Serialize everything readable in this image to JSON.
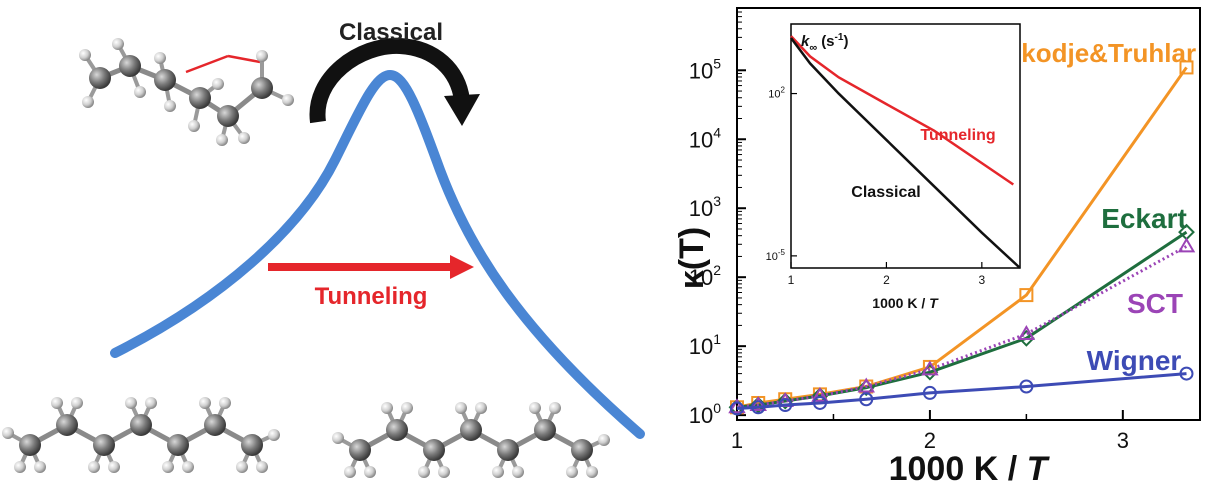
{
  "left_panel": {
    "classical_label": "Classical",
    "tunneling_label": "Tunneling",
    "colors": {
      "barrier": "#4a86d4",
      "tunnel": "#e5262b",
      "arrow": "#111111"
    },
    "icons": [
      "ts-molecule-icon",
      "reactant-molecule-icon",
      "product-molecule-icon"
    ]
  },
  "chart_data": [
    {
      "type": "line",
      "log_y": true,
      "xlabel": "1000 K / T",
      "ylabel": "κ(T)",
      "xlim": [
        1.0,
        3.4
      ],
      "ylim": [
        0.85,
        800000
      ],
      "x_ticks": [
        "1",
        "2",
        "3"
      ],
      "y_ticks": [
        {
          "base": "10",
          "exp": "0"
        },
        {
          "base": "10",
          "exp": "1"
        },
        {
          "base": "10",
          "exp": "2"
        },
        {
          "base": "10",
          "exp": "3"
        },
        {
          "base": "10",
          "exp": "4"
        },
        {
          "base": "10",
          "exp": "5"
        }
      ],
      "series": [
        {
          "name": "Skodje&Truhlar",
          "color": "#f39425",
          "marker": "square",
          "x": [
            1.0,
            1.11,
            1.25,
            1.43,
            1.67,
            2.0,
            2.5,
            3.33
          ],
          "y": [
            1.3,
            1.5,
            1.7,
            2.0,
            2.6,
            5.0,
            55,
            110000
          ]
        },
        {
          "name": "Eckart",
          "color": "#1e6e3e",
          "marker": "diamond",
          "x": [
            1.0,
            1.11,
            1.25,
            1.43,
            1.67,
            2.0,
            2.5,
            3.33
          ],
          "y": [
            1.3,
            1.4,
            1.6,
            1.9,
            2.5,
            4.2,
            13,
            450
          ]
        },
        {
          "name": "SCT",
          "color": "#9b44b6",
          "marker": "triangle",
          "x": [
            1.0,
            1.11,
            1.25,
            1.43,
            1.67,
            2.0,
            2.5,
            3.33
          ],
          "y": [
            1.3,
            1.4,
            1.6,
            1.9,
            2.6,
            4.6,
            15,
            280
          ]
        },
        {
          "name": "Wigner",
          "color": "#3d4bb5",
          "marker": "circle",
          "x": [
            1.0,
            1.11,
            1.25,
            1.43,
            1.67,
            2.0,
            2.5,
            3.33
          ],
          "y": [
            1.25,
            1.3,
            1.4,
            1.5,
            1.7,
            2.1,
            2.6,
            4.0
          ]
        }
      ]
    },
    {
      "type": "line",
      "log_y": true,
      "title_main": "k",
      "title_sub": "∞",
      "title_unit": "(s",
      "title_unit_exp": "-1",
      "title_close": ")",
      "xlabel": "1000 K / T",
      "xlim": [
        1.0,
        3.4
      ],
      "ylim": [
        3e-06,
        100000
      ],
      "x_ticks": [
        "1",
        "2",
        "3"
      ],
      "y_ticks": [
        {
          "base": "10",
          "exp": "-5",
          "value": 1e-05
        },
        {
          "base": "10",
          "exp": "2",
          "value": 100
        }
      ],
      "series": [
        {
          "name": "Tunneling",
          "color": "#e5262b",
          "x": [
            1.0,
            1.2,
            1.5,
            2.0,
            2.5,
            3.0,
            3.33
          ],
          "y": [
            30000,
            4000,
            500,
            35,
            2.5,
            0.1,
            0.012
          ]
        },
        {
          "name": "Classical",
          "color": "#111111",
          "x": [
            1.0,
            1.2,
            1.5,
            2.0,
            2.5,
            3.0,
            3.4
          ],
          "y": [
            25000,
            2000,
            100,
            1,
            0.01,
            0.0001,
            3e-06
          ]
        }
      ]
    }
  ]
}
